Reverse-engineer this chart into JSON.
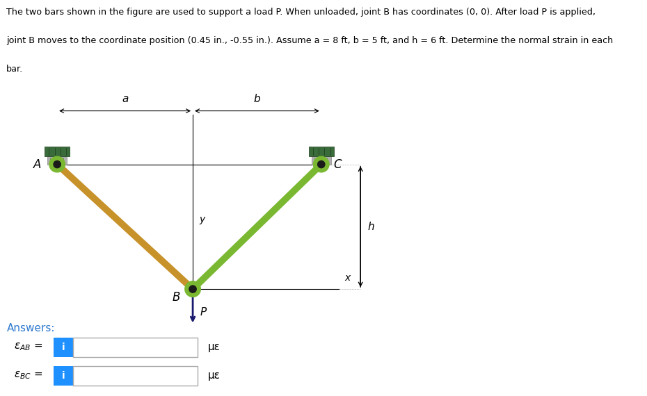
{
  "title_line1": "The two bars shown in the figure are used to support a load P. When unloaded, joint B has coordinates (0, 0). After load P is applied,",
  "title_line2": "joint B moves to the coordinate position (0.45 in., -0.55 in.). Assume a = 8 ft, b = 5 ft, and h = 6 ft. Determine the normal strain in each",
  "title_line3": "bar.",
  "background_color": "#ffffff",
  "text_color": "#000000",
  "bar_AB_color": "#c8922a",
  "bar_BC_color": "#7ab832",
  "wall_top_color": "#3a6b3a",
  "wall_body_color": "#c8c8c8",
  "joint_outer_color": "#7ab832",
  "joint_inner_color": "#1a1a1a",
  "answers_color": "#2e7bcf",
  "blue_btn_color": "#1e90ff",
  "p_arrow_color": "#1a1a6e",
  "label_a": "a",
  "label_b": "b",
  "label_h": "h",
  "label_A": "A",
  "label_B": "B",
  "label_C": "C",
  "label_x": "x",
  "label_y": "y",
  "label_P": "P",
  "answers_label": "Answers:",
  "unit_label": "με"
}
